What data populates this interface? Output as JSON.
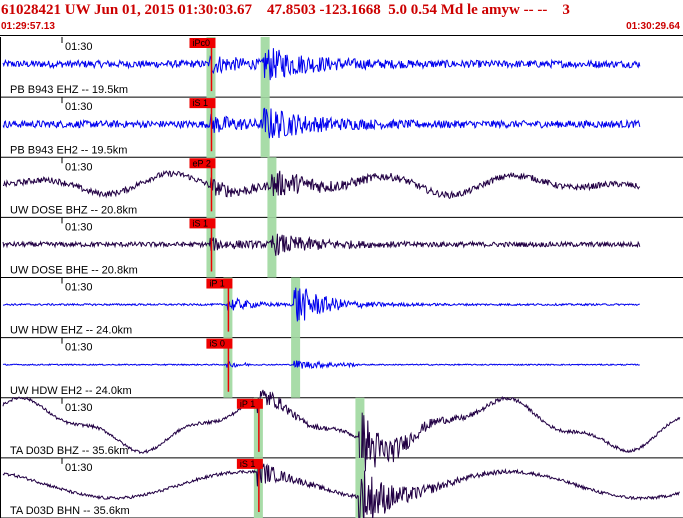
{
  "header": {
    "title": "61028421 UW Jun 01, 2015 01:30:03.67    47.8503 -123.1668  5.0 0.54 Md le amyw -- --    3",
    "start_time": "01:29:57.13",
    "end_time": "01:30:29.64"
  },
  "colors": {
    "header_red": "#cc0000",
    "blue_trace": "#0000ee",
    "dark_trace": "#220044",
    "pick_flag": "#ee0000",
    "window_band": "#a8dca8"
  },
  "traces": [
    {
      "label": "PB B943 EHZ -- 19.5km",
      "tick": "01:30",
      "pick": "iPc0",
      "color": "blue",
      "kind": "blue_noise",
      "amp": 0.28,
      "p_frac": 0.305,
      "s_frac": 0.385
    },
    {
      "label": "PB B943 EH2 -- 19.5km",
      "tick": "01:30",
      "pick": "iS 1",
      "color": "blue",
      "kind": "blue_noise",
      "amp": 0.22,
      "p_frac": 0.305,
      "s_frac": 0.385
    },
    {
      "label": "UW DOSE BHZ -- 20.8km",
      "tick": "01:30",
      "pick": "eP 2",
      "color": "dark",
      "kind": "dark_wave",
      "amp": 0.32,
      "p_frac": 0.305,
      "s_frac": 0.395
    },
    {
      "label": "UW DOSE BHE -- 20.8km",
      "tick": "01:30",
      "pick": "iS 1",
      "color": "dark",
      "kind": "dark_noise",
      "amp": 0.2,
      "p_frac": 0.305,
      "s_frac": 0.395
    },
    {
      "label": "UW HDW EHZ -- 24.0km",
      "tick": "01:30",
      "pick": "iP 1",
      "color": "blue",
      "kind": "blue_quiet",
      "amp": 0.06,
      "p_frac": 0.33,
      "s_frac": 0.43
    },
    {
      "label": "UW HDW EH2 -- 24.0km",
      "tick": "01:30",
      "pick": "iS 0",
      "color": "blue",
      "kind": "blue_flat",
      "amp": 0.03,
      "p_frac": 0.33,
      "s_frac": 0.43
    },
    {
      "label": "TA D03D BHZ -- 35.6km",
      "tick": "01:30",
      "pick": "iP 1",
      "color": "dark",
      "kind": "long_wave",
      "amp": 0.3,
      "p_frac": 0.375,
      "s_frac": 0.525
    },
    {
      "label": "TA D03D BHN -- 35.6km",
      "tick": "01:30",
      "pick": "iS 1",
      "color": "dark",
      "kind": "long_wave2",
      "amp": 0.22,
      "p_frac": 0.375,
      "s_frac": 0.525
    }
  ]
}
